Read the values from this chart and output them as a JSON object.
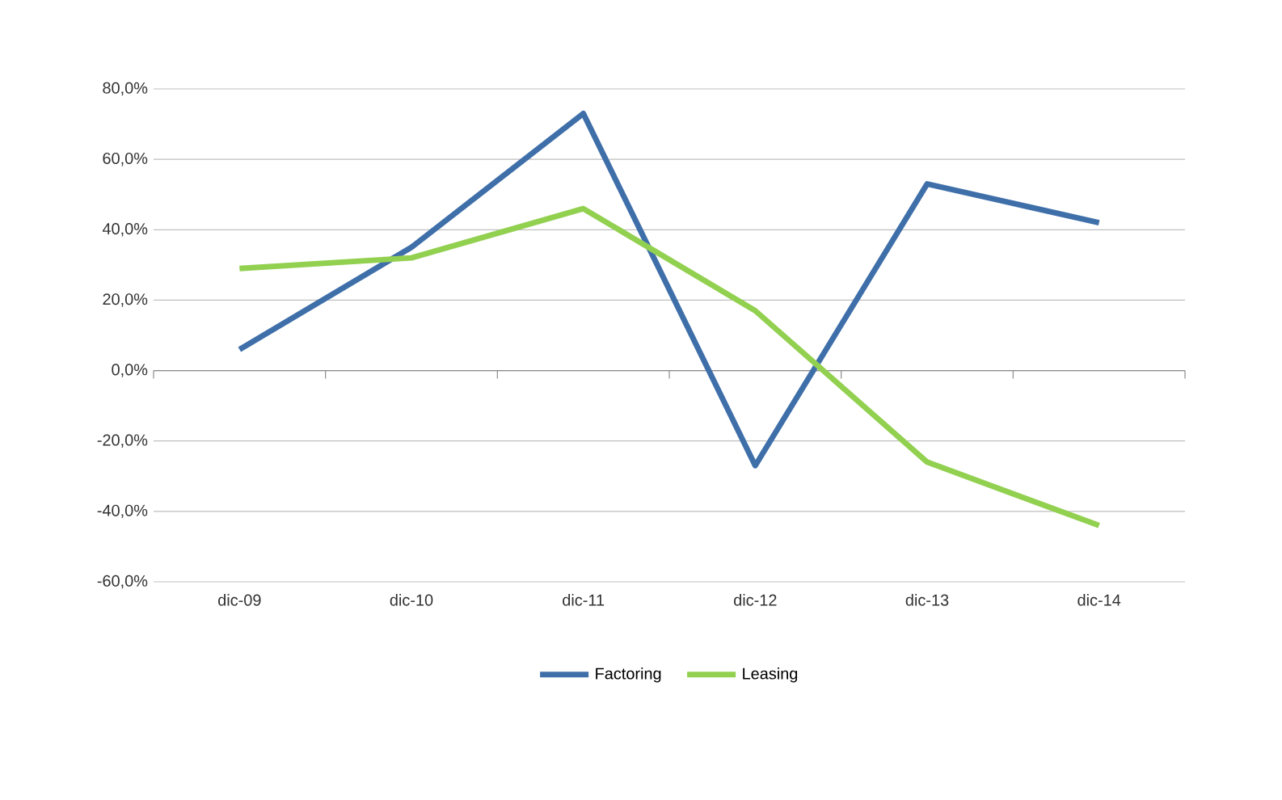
{
  "chart_data": {
    "type": "line",
    "categories": [
      "dic-09",
      "dic-10",
      "dic-11",
      "dic-12",
      "dic-13",
      "dic-14"
    ],
    "series": [
      {
        "name": "Factoring",
        "color": "#3f6fa9",
        "values": [
          6,
          35,
          73,
          -27,
          53,
          42
        ]
      },
      {
        "name": "Leasing",
        "color": "#92d050",
        "values": [
          29,
          32,
          46,
          17,
          -26,
          -44
        ]
      }
    ],
    "ylim": [
      -60,
      80
    ],
    "yticks": [
      {
        "value": -60,
        "label": "-60,0%"
      },
      {
        "value": -40,
        "label": "-40,0%"
      },
      {
        "value": -20,
        "label": "-20,0%"
      },
      {
        "value": 0,
        "label": "0,0%"
      },
      {
        "value": 20,
        "label": "20,0%"
      },
      {
        "value": 40,
        "label": "40,0%"
      },
      {
        "value": 60,
        "label": "60,0%"
      },
      {
        "value": 80,
        "label": "80,0%"
      }
    ],
    "grid": "y",
    "legend": "bottom",
    "marker": "none",
    "line_style": "solid"
  }
}
